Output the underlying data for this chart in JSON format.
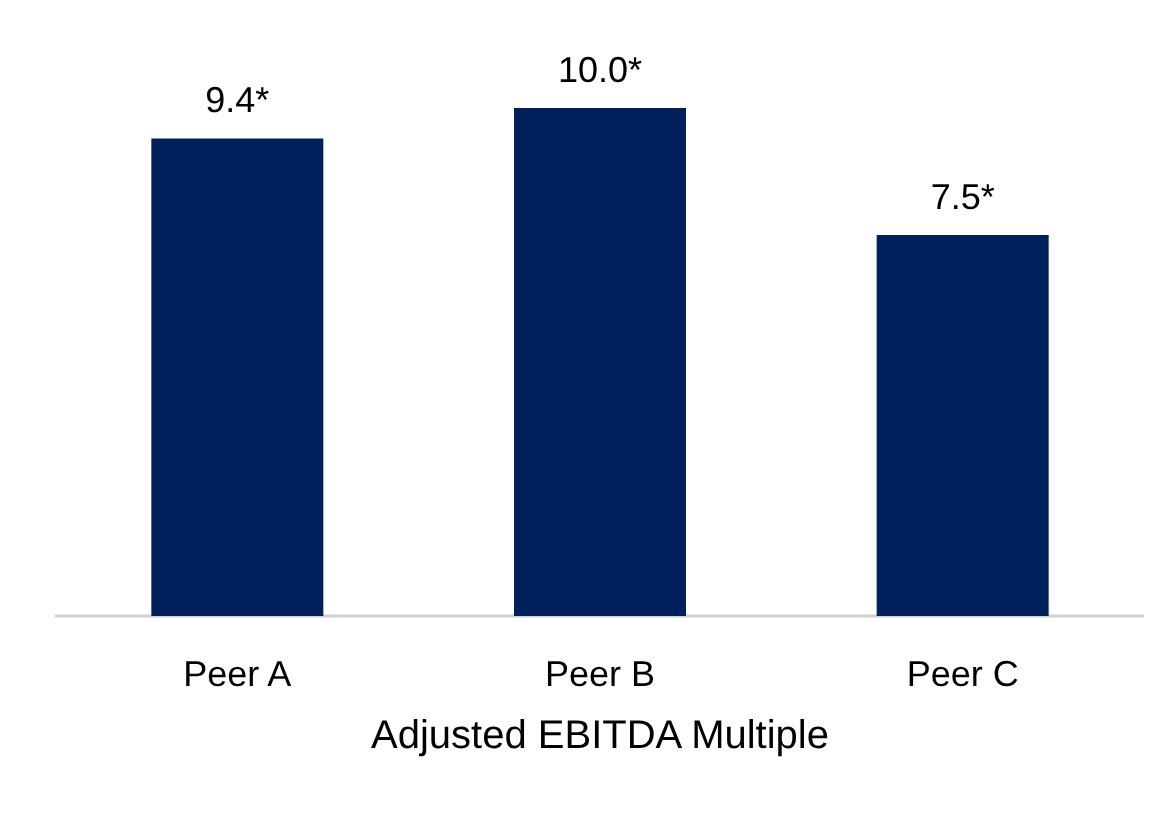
{
  "chart_data": {
    "type": "bar",
    "xlabel": "Adjusted EBITDA Multiple",
    "categories": [
      "Peer A",
      "Peer B",
      "Peer C"
    ],
    "values": [
      9.4,
      10.0,
      7.5
    ],
    "value_labels": [
      "9.4*",
      "10.0*",
      "7.5*"
    ],
    "color": "#00205b"
  }
}
